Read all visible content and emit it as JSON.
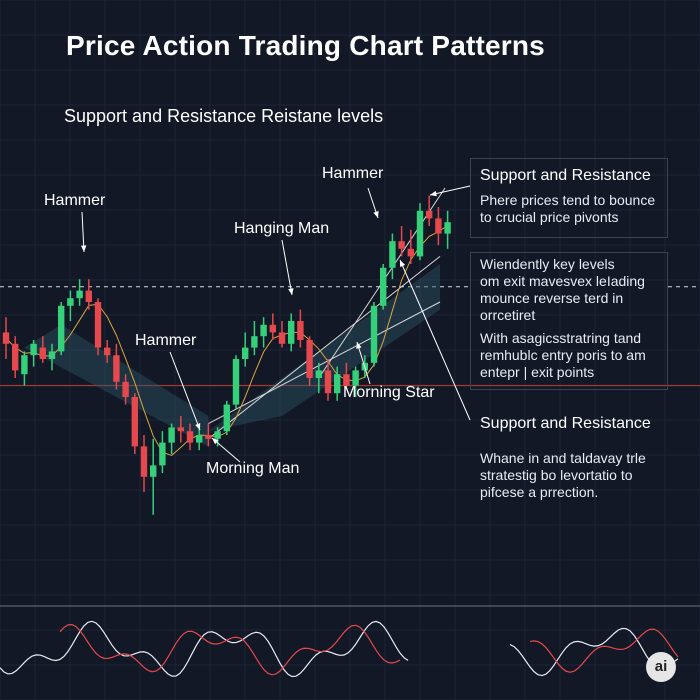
{
  "header": {
    "title": "Price Action Trading Chart Patterns",
    "subtitle": "Support and Resistance Reistane levels"
  },
  "annotations": {
    "hammer_left": "Hammer",
    "hammer_mid": "Hammer",
    "hammer_top": "Hammer",
    "hanging_man": "Hanging Man",
    "morning_man": "Morning Man",
    "morning_star": "Morning Star"
  },
  "panel_top": {
    "heading": "Support and Resistance",
    "lines": [
      "Phere prices tend to bounce",
      "to crucial price pivonts"
    ]
  },
  "panel_mid": {
    "lines_a": [
      "Wiendently key levels",
      "om exit mavesvex leIading",
      "mounce reverse terd in",
      "orrcetiret"
    ],
    "lines_b": [
      "With asagicsstratring tand",
      "remhublc entry poris to am",
      "entepr | exit points"
    ]
  },
  "panel_bottom": {
    "heading": "Support and Resistance",
    "lines": [
      "Whane in and taldavay trle",
      "stratestig bo levortatio to",
      "pifcese a prrection."
    ]
  },
  "logo": {
    "text": "ai"
  },
  "colors": {
    "background": "#121826",
    "bull": "#34d17a",
    "bear": "#e5484d",
    "support_line": "#d9d9d9",
    "resistance_line": "#c0392b",
    "channel_fill": "#2f5566",
    "ma_line": "#d9a441"
  },
  "chart_data": {
    "type": "candlestick",
    "title": "Price Action Trading Chart Patterns",
    "subtitle": "Support and Resistance Reistane levels",
    "ylim": [
      0,
      100
    ],
    "grid": true,
    "candles": [
      {
        "o": 52,
        "h": 56,
        "l": 45,
        "c": 49
      },
      {
        "o": 49,
        "h": 51,
        "l": 40,
        "c": 42
      },
      {
        "o": 41,
        "h": 47,
        "l": 38,
        "c": 46
      },
      {
        "o": 46,
        "h": 50,
        "l": 43,
        "c": 49
      },
      {
        "o": 48,
        "h": 51,
        "l": 44,
        "c": 45
      },
      {
        "o": 45,
        "h": 49,
        "l": 42,
        "c": 47
      },
      {
        "o": 47,
        "h": 60,
        "l": 46,
        "c": 59
      },
      {
        "o": 59,
        "h": 63,
        "l": 55,
        "c": 61
      },
      {
        "o": 61,
        "h": 66,
        "l": 59,
        "c": 63
      },
      {
        "o": 63,
        "h": 66,
        "l": 58,
        "c": 60
      },
      {
        "o": 60,
        "h": 61,
        "l": 46,
        "c": 48
      },
      {
        "o": 48,
        "h": 50,
        "l": 44,
        "c": 46
      },
      {
        "o": 46,
        "h": 49,
        "l": 37,
        "c": 39
      },
      {
        "o": 39,
        "h": 41,
        "l": 33,
        "c": 35
      },
      {
        "o": 35,
        "h": 36,
        "l": 20,
        "c": 22
      },
      {
        "o": 22,
        "h": 25,
        "l": 10,
        "c": 14
      },
      {
        "o": 14,
        "h": 24,
        "l": 4,
        "c": 17
      },
      {
        "o": 17,
        "h": 26,
        "l": 15,
        "c": 23
      },
      {
        "o": 23,
        "h": 28,
        "l": 20,
        "c": 27
      },
      {
        "o": 27,
        "h": 30,
        "l": 23,
        "c": 26
      },
      {
        "o": 26,
        "h": 28,
        "l": 21,
        "c": 23
      },
      {
        "o": 23,
        "h": 27,
        "l": 21,
        "c": 25
      },
      {
        "o": 25,
        "h": 28,
        "l": 22,
        "c": 24
      },
      {
        "o": 24,
        "h": 27,
        "l": 22,
        "c": 26
      },
      {
        "o": 26,
        "h": 34,
        "l": 25,
        "c": 33
      },
      {
        "o": 33,
        "h": 46,
        "l": 32,
        "c": 45
      },
      {
        "o": 45,
        "h": 52,
        "l": 43,
        "c": 48
      },
      {
        "o": 48,
        "h": 55,
        "l": 46,
        "c": 51
      },
      {
        "o": 51,
        "h": 56,
        "l": 48,
        "c": 54
      },
      {
        "o": 54,
        "h": 57,
        "l": 50,
        "c": 52
      },
      {
        "o": 52,
        "h": 55,
        "l": 48,
        "c": 49
      },
      {
        "o": 49,
        "h": 57,
        "l": 47,
        "c": 55
      },
      {
        "o": 55,
        "h": 58,
        "l": 48,
        "c": 50
      },
      {
        "o": 50,
        "h": 51,
        "l": 38,
        "c": 40
      },
      {
        "o": 40,
        "h": 44,
        "l": 36,
        "c": 42
      },
      {
        "o": 42,
        "h": 45,
        "l": 34,
        "c": 36
      },
      {
        "o": 36,
        "h": 43,
        "l": 34,
        "c": 41
      },
      {
        "o": 41,
        "h": 44,
        "l": 37,
        "c": 38
      },
      {
        "o": 38,
        "h": 43,
        "l": 35,
        "c": 42
      },
      {
        "o": 42,
        "h": 46,
        "l": 40,
        "c": 44
      },
      {
        "o": 44,
        "h": 60,
        "l": 43,
        "c": 59
      },
      {
        "o": 59,
        "h": 70,
        "l": 58,
        "c": 69
      },
      {
        "o": 69,
        "h": 78,
        "l": 66,
        "c": 76
      },
      {
        "o": 76,
        "h": 80,
        "l": 72,
        "c": 74
      },
      {
        "o": 74,
        "h": 79,
        "l": 70,
        "c": 72
      },
      {
        "o": 72,
        "h": 86,
        "l": 71,
        "c": 84
      },
      {
        "o": 84,
        "h": 88,
        "l": 80,
        "c": 82
      },
      {
        "o": 82,
        "h": 85,
        "l": 75,
        "c": 78
      },
      {
        "o": 78,
        "h": 84,
        "l": 74,
        "c": 81
      }
    ],
    "support_level": 64,
    "resistance_level": 38
  }
}
